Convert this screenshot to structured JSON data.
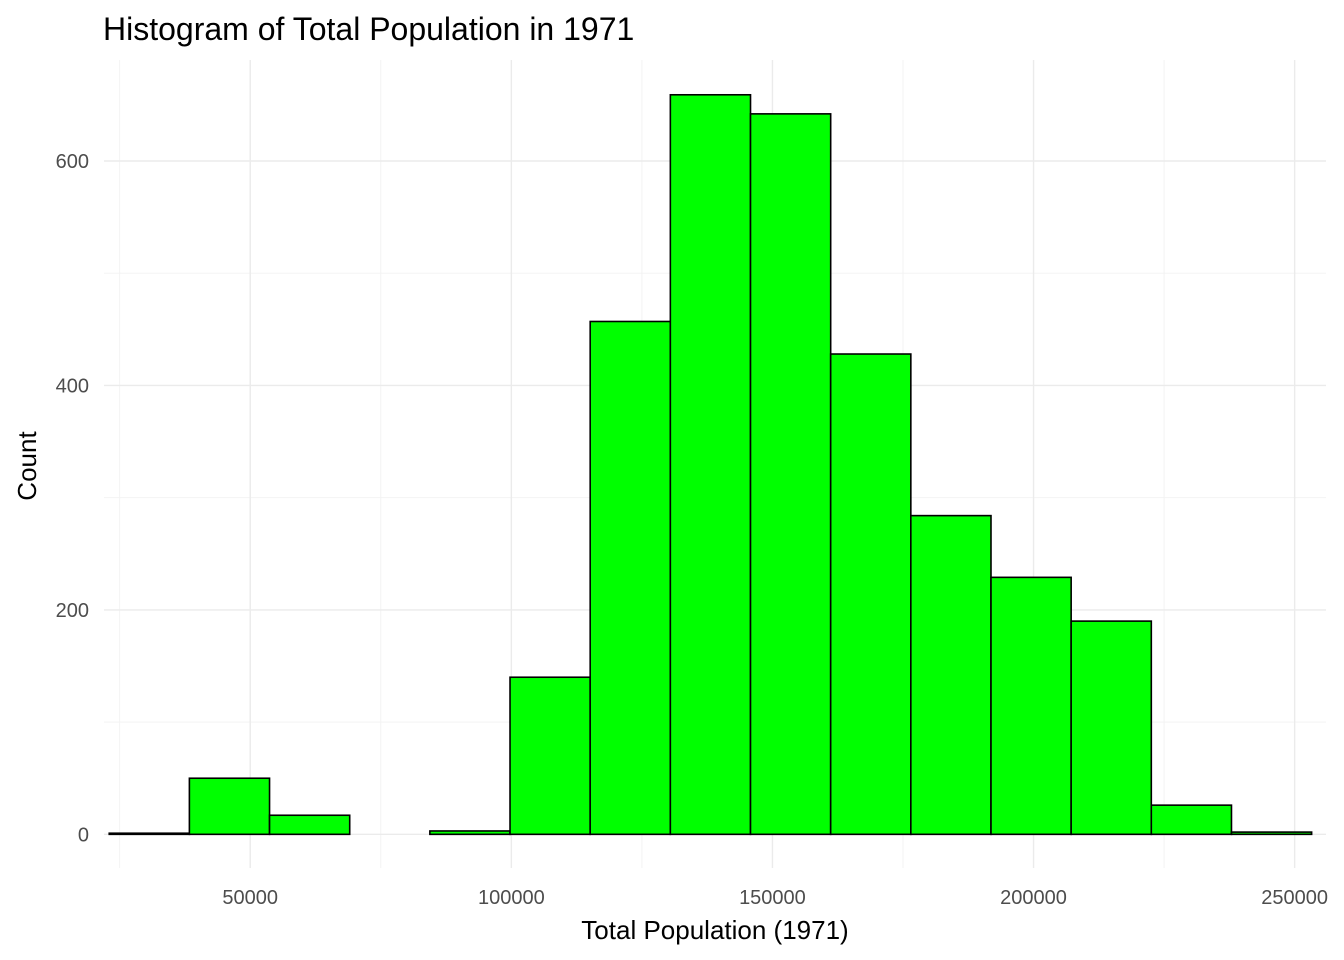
{
  "chart_data": {
    "type": "bar",
    "title": "Histogram of Total Population in 1971",
    "xlabel": "Total Population (1971)",
    "ylabel": "Count",
    "fill_color": "#00ff00",
    "edge_color": "#000000",
    "xlim": [
      22000,
      256000
    ],
    "ylim": [
      -30,
      690
    ],
    "x_ticks": [
      50000,
      100000,
      150000,
      200000,
      250000
    ],
    "x_tick_labels": [
      "50000",
      "100000",
      "150000",
      "200000",
      "250000"
    ],
    "y_ticks": [
      0,
      200,
      400,
      600
    ],
    "y_tick_labels": [
      "0",
      "200",
      "400",
      "600"
    ],
    "grid": true,
    "bins": [
      {
        "x0": 23000,
        "x1": 38350,
        "count": 1
      },
      {
        "x0": 38350,
        "x1": 53700,
        "count": 50
      },
      {
        "x0": 53700,
        "x1": 69050,
        "count": 17
      },
      {
        "x0": 69050,
        "x1": 84400,
        "count": 0
      },
      {
        "x0": 84400,
        "x1": 99750,
        "count": 3
      },
      {
        "x0": 99750,
        "x1": 115100,
        "count": 140
      },
      {
        "x0": 115100,
        "x1": 130450,
        "count": 457
      },
      {
        "x0": 130450,
        "x1": 145800,
        "count": 659
      },
      {
        "x0": 145800,
        "x1": 161150,
        "count": 642
      },
      {
        "x0": 161150,
        "x1": 176500,
        "count": 428
      },
      {
        "x0": 176500,
        "x1": 191850,
        "count": 284
      },
      {
        "x0": 191850,
        "x1": 207200,
        "count": 229
      },
      {
        "x0": 207200,
        "x1": 222550,
        "count": 190
      },
      {
        "x0": 222550,
        "x1": 237900,
        "count": 26
      },
      {
        "x0": 237900,
        "x1": 253250,
        "count": 2
      }
    ]
  }
}
